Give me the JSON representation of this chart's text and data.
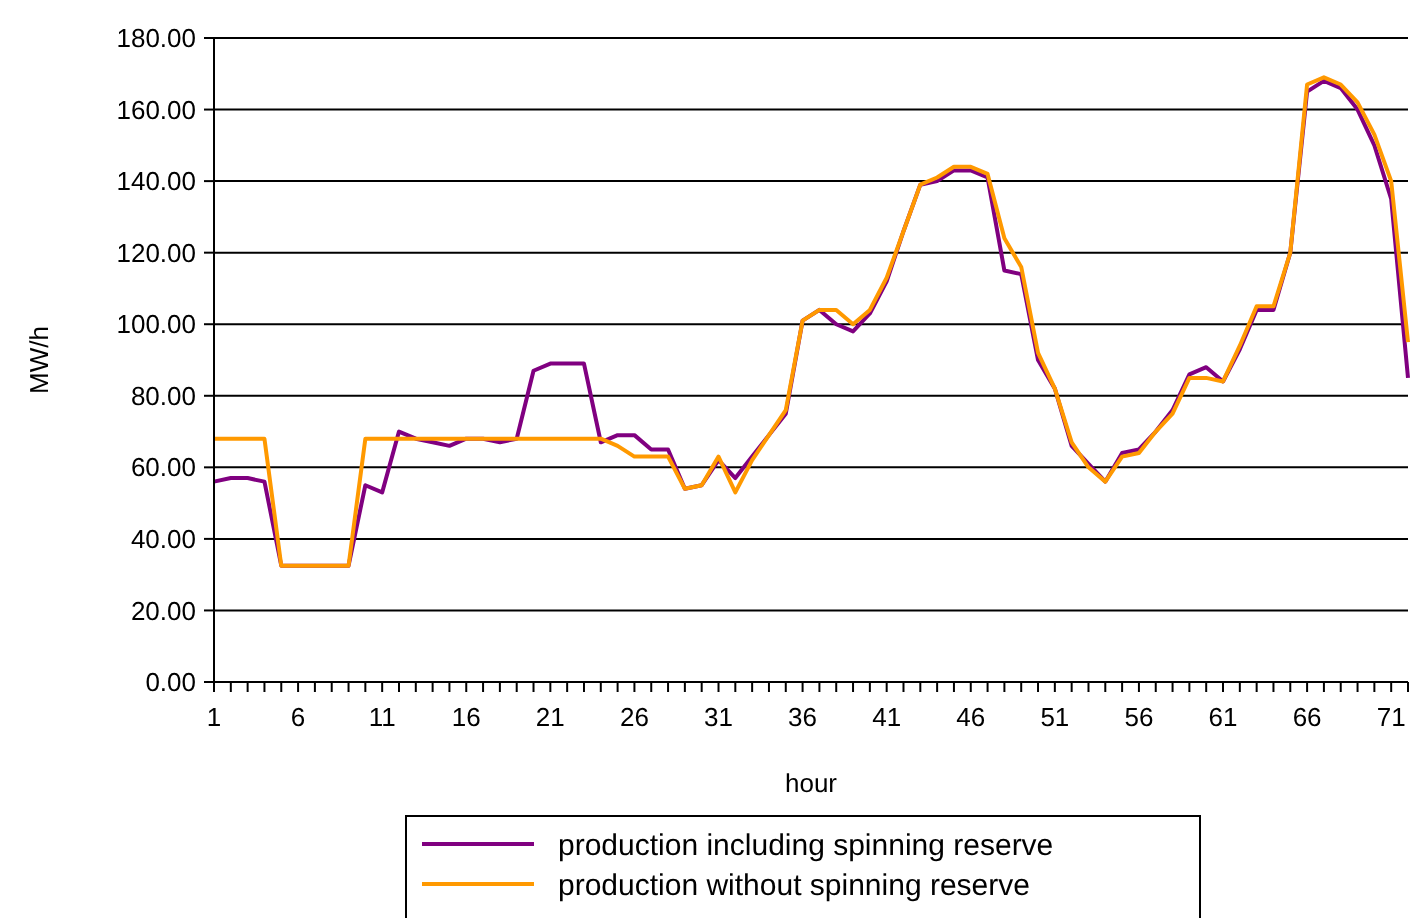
{
  "chart_data": {
    "type": "line",
    "xlabel": "hour",
    "ylabel": "MW/h",
    "x": [
      1,
      2,
      3,
      4,
      5,
      6,
      7,
      8,
      9,
      10,
      11,
      12,
      13,
      14,
      15,
      16,
      17,
      18,
      19,
      20,
      21,
      22,
      23,
      24,
      25,
      26,
      27,
      28,
      29,
      30,
      31,
      32,
      33,
      34,
      35,
      36,
      37,
      38,
      39,
      40,
      41,
      42,
      43,
      44,
      45,
      46,
      47,
      48,
      49,
      50,
      51,
      52,
      53,
      54,
      55,
      56,
      57,
      58,
      59,
      60,
      61,
      62,
      63,
      64,
      65,
      66,
      67,
      68,
      69,
      70,
      71,
      72
    ],
    "series": [
      {
        "name": "production including spinning reserve",
        "color": "#800080",
        "values": [
          56,
          57,
          57,
          56,
          32.5,
          32.5,
          32.5,
          32.5,
          32.5,
          55,
          53,
          70,
          68,
          67,
          66,
          68,
          68,
          67,
          68,
          87,
          89,
          89,
          89,
          67,
          69,
          69,
          65,
          65,
          54,
          55,
          62,
          57,
          63,
          69,
          75,
          101,
          104,
          100,
          98,
          103,
          112,
          126,
          139,
          140,
          143,
          143,
          141,
          115,
          114,
          90,
          82,
          66,
          61,
          56,
          64,
          65,
          70,
          76,
          86,
          88,
          84,
          93,
          104,
          104,
          120,
          165,
          168,
          166,
          160,
          150,
          135,
          85
        ]
      },
      {
        "name": "production without spinning reserve",
        "color": "#ff9900",
        "values": [
          68,
          68,
          68,
          68,
          32.5,
          32.5,
          32.5,
          32.5,
          32.5,
          68,
          68,
          68,
          68,
          68,
          68,
          68,
          68,
          68,
          68,
          68,
          68,
          68,
          68,
          68,
          66,
          63,
          63,
          63,
          54,
          55,
          63,
          53,
          62,
          69,
          76,
          101,
          104,
          104,
          100,
          104,
          113,
          126,
          139,
          141,
          144,
          144,
          142,
          124,
          116,
          92,
          82,
          67,
          60,
          56,
          63,
          64,
          70,
          75,
          85,
          85,
          84,
          94,
          105,
          105,
          120,
          167,
          169,
          167,
          162,
          153,
          140,
          95
        ]
      }
    ],
    "xlim": [
      1,
      72
    ],
    "xticks": [
      1,
      6,
      11,
      16,
      21,
      26,
      31,
      36,
      41,
      46,
      51,
      56,
      61,
      66,
      71
    ],
    "ylim": [
      0,
      180
    ],
    "yticks": [
      {
        "value": 0,
        "label": "0.00"
      },
      {
        "value": 20,
        "label": "20.00"
      },
      {
        "value": 40,
        "label": "40.00"
      },
      {
        "value": 60,
        "label": "60.00"
      },
      {
        "value": 80,
        "label": "80.00"
      },
      {
        "value": 100,
        "label": "100.00"
      },
      {
        "value": 120,
        "label": "120.00"
      },
      {
        "value": 140,
        "label": "140.00"
      },
      {
        "value": 160,
        "label": "160.00"
      },
      {
        "value": 180,
        "label": "180.00"
      }
    ],
    "grid": "y",
    "legend": "bottom",
    "marker": "none",
    "line_style": "solid"
  }
}
